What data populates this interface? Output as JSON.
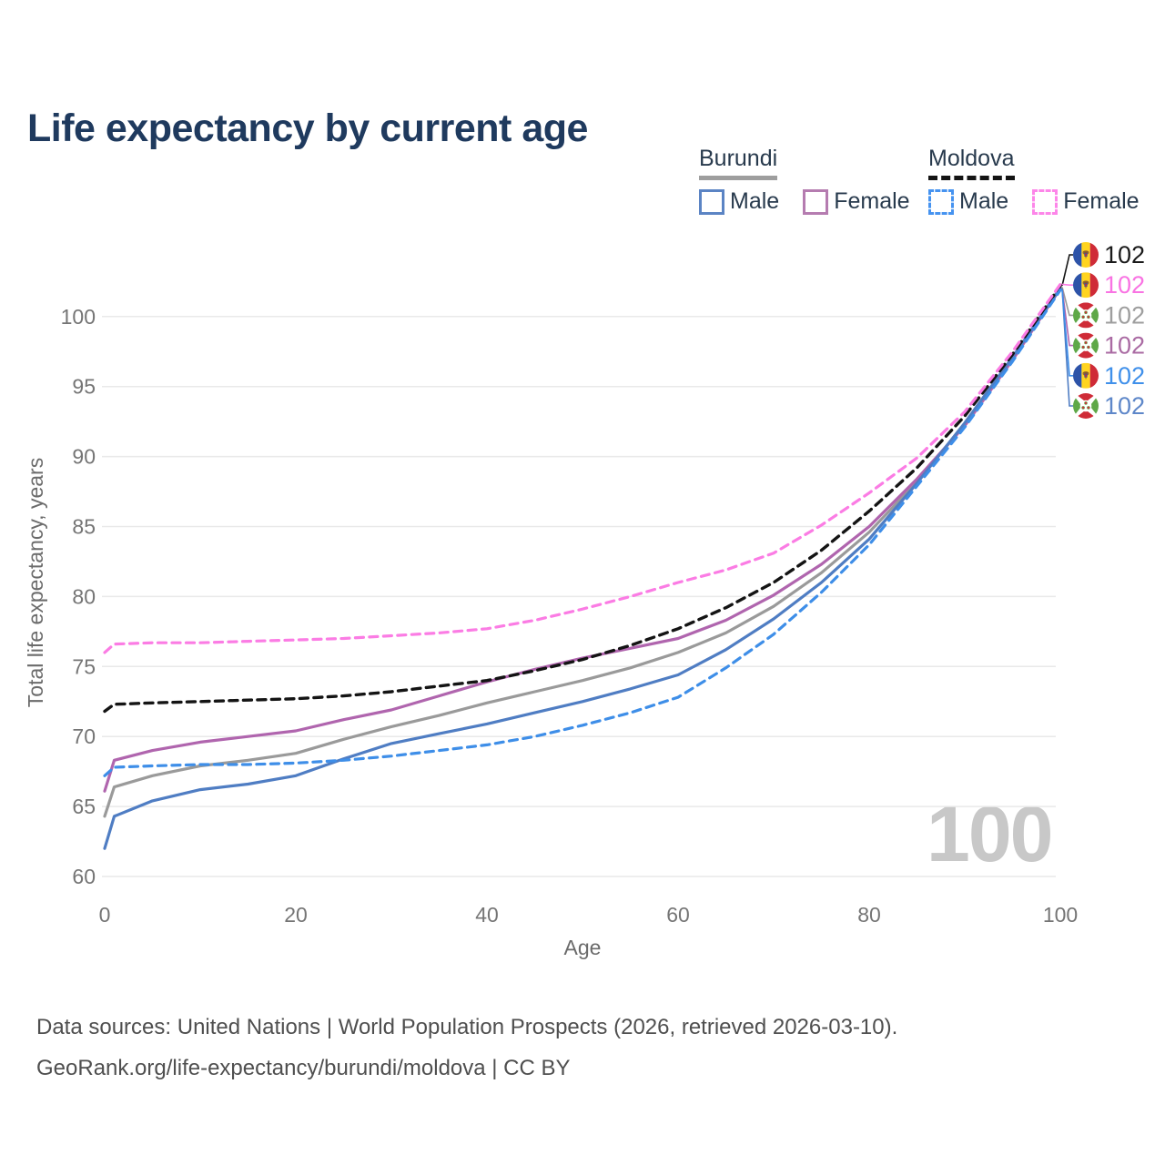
{
  "title": "Life expectancy by current age",
  "watermark_age": "100",
  "footer": {
    "line1": "Data sources: United Nations | World Population Prospects (2026, retrieved 2026-03-10).",
    "line2": "GeoRank.org/life-expectancy/burundi/moldova | CC BY"
  },
  "legend": {
    "groups": [
      {
        "label": "Burundi",
        "line_style": "solid",
        "line_color": "#9e9e9e",
        "items": [
          {
            "label": "Male",
            "color": "#5b84c4",
            "style": "solid"
          },
          {
            "label": "Female",
            "color": "#b57cb0",
            "style": "solid"
          }
        ]
      },
      {
        "label": "Moldova",
        "line_style": "dashed",
        "line_color": "#141414",
        "items": [
          {
            "label": "Male",
            "color": "#4693f0",
            "style": "dashed"
          },
          {
            "label": "Female",
            "color": "#fd86e9",
            "style": "dashed"
          }
        ]
      }
    ]
  },
  "chart_data": {
    "type": "line",
    "title": "Life expectancy by current age",
    "xlabel": "Age",
    "ylabel": "Total life expectancy, years",
    "xlim": [
      0,
      100
    ],
    "ylim": [
      60,
      103.5
    ],
    "xticks": [
      0,
      20,
      40,
      60,
      80,
      100
    ],
    "yticks": [
      60,
      65,
      70,
      75,
      80,
      85,
      90,
      95,
      100
    ],
    "grid": "horizontal",
    "legend_position": "top-right",
    "hover_age": 100,
    "x": [
      0,
      1,
      5,
      10,
      15,
      20,
      25,
      30,
      35,
      40,
      45,
      50,
      55,
      60,
      65,
      70,
      75,
      80,
      85,
      90,
      95,
      100
    ],
    "series": [
      {
        "id": "burundi-both",
        "name": "Burundi Both sexes",
        "country": "Burundi",
        "sex": "Both",
        "color": "#9a9a9a",
        "dash": "solid",
        "width": 3.2,
        "flag": "burundi",
        "end_label": "102",
        "end_label_color": "#9e9e9e",
        "end_row": 2,
        "values": [
          64.3,
          66.4,
          67.2,
          67.9,
          68.3,
          68.8,
          69.8,
          70.7,
          71.5,
          72.4,
          73.2,
          74.0,
          74.9,
          76.0,
          77.4,
          79.3,
          81.7,
          84.6,
          88.2,
          92.3,
          97.0,
          102.1
        ]
      },
      {
        "id": "burundi-female",
        "name": "Burundi Female",
        "country": "Burundi",
        "sex": "Female",
        "color": "#b065ae",
        "dash": "solid",
        "width": 3.2,
        "flag": "burundi",
        "end_label": "102",
        "end_label_color": "#aa6ba3",
        "end_row": 3,
        "values": [
          66.1,
          68.3,
          69.0,
          69.6,
          70.0,
          70.4,
          71.2,
          71.9,
          72.9,
          73.9,
          74.8,
          75.6,
          76.3,
          77.0,
          78.3,
          80.1,
          82.3,
          85.0,
          88.4,
          92.2,
          96.9,
          102.0
        ]
      },
      {
        "id": "burundi-male",
        "name": "Burundi Male",
        "country": "Burundi",
        "sex": "Male",
        "color": "#4f7dc3",
        "dash": "solid",
        "width": 3.2,
        "flag": "burundi",
        "end_label": "102",
        "end_label_color": "#5e87c9",
        "end_row": 5,
        "values": [
          62.0,
          64.3,
          65.4,
          66.2,
          66.6,
          67.2,
          68.4,
          69.5,
          70.2,
          70.9,
          71.7,
          72.5,
          73.4,
          74.4,
          76.2,
          78.4,
          81.0,
          84.1,
          88.1,
          92.4,
          97.1,
          102.0
        ]
      },
      {
        "id": "moldova-both",
        "name": "Moldova Both sexes",
        "country": "Moldova",
        "sex": "Both",
        "color": "#141414",
        "dash": "dashed",
        "width": 3.4,
        "flag": "moldova",
        "end_label": "102",
        "end_label_color": "#1a1a1a",
        "end_row": 0,
        "values": [
          71.8,
          72.3,
          72.4,
          72.5,
          72.6,
          72.7,
          72.9,
          73.2,
          73.6,
          74.0,
          74.7,
          75.5,
          76.5,
          77.7,
          79.2,
          81.0,
          83.3,
          86.1,
          89.2,
          92.9,
          97.3,
          102.2
        ]
      },
      {
        "id": "moldova-male",
        "name": "Moldova Male",
        "country": "Moldova",
        "sex": "Male",
        "color": "#3e8ee8",
        "dash": "dashed",
        "width": 3.2,
        "flag": "moldova",
        "end_label": "102",
        "end_label_color": "#4090ea",
        "end_row": 4,
        "values": [
          67.2,
          67.8,
          67.9,
          68.0,
          68.0,
          68.1,
          68.3,
          68.6,
          69.0,
          69.4,
          70.0,
          70.8,
          71.7,
          72.8,
          74.9,
          77.3,
          80.3,
          83.7,
          87.9,
          92.1,
          96.8,
          101.9
        ]
      },
      {
        "id": "moldova-female",
        "name": "Moldova Female",
        "country": "Moldova",
        "sex": "Female",
        "color": "#fb7ce4",
        "dash": "dashed",
        "width": 3.2,
        "flag": "moldova",
        "end_label": "102",
        "end_label_color": "#f973e3",
        "end_row": 1,
        "values": [
          76.0,
          76.6,
          76.7,
          76.7,
          76.8,
          76.9,
          77.0,
          77.2,
          77.4,
          77.7,
          78.3,
          79.1,
          80.0,
          81.0,
          81.9,
          83.1,
          85.1,
          87.4,
          89.9,
          93.2,
          97.5,
          102.3
        ]
      }
    ]
  }
}
